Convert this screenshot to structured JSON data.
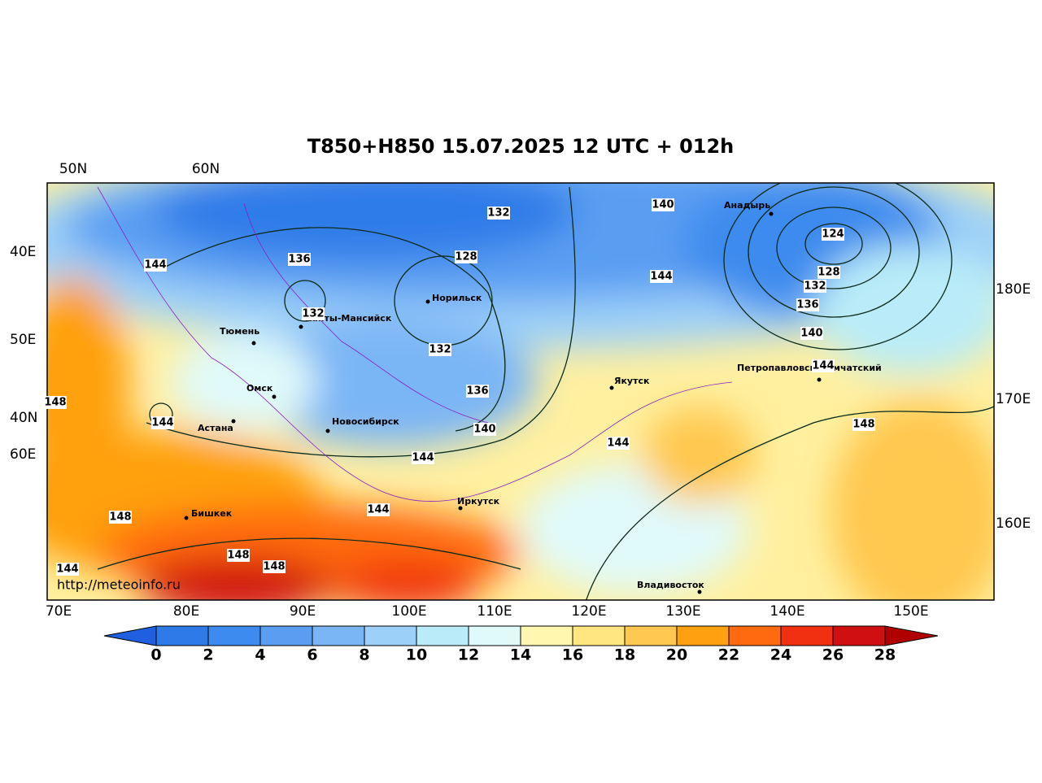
{
  "title": "T850+H850 15.07.2025 12 UTC + 012h",
  "watermark": "http://meteoinfo.ru",
  "top_labels": [
    "50N",
    "60N"
  ],
  "left_labels": [
    "40E",
    "50E",
    "40N",
    "60E"
  ],
  "right_labels": [
    "180E",
    "170E",
    "160E"
  ],
  "bottom_labels": [
    "70E",
    "80E",
    "90E",
    "100E",
    "110E",
    "120E",
    "130E",
    "140E",
    "150E"
  ],
  "cities": [
    "Анадырь",
    "Норильск",
    "Ханты-Мансийск",
    "Тюмень",
    "Омск",
    "Астана",
    "Новосибирск",
    "Якутск",
    "Петропавловск-Камчатский",
    "Иркутск",
    "Бишкек",
    "Владивосток"
  ],
  "contour_labels": [
    148,
    144,
    136,
    132,
    132,
    128,
    140,
    124,
    128,
    132,
    136,
    140,
    144,
    148,
    144,
    144,
    144,
    140,
    136,
    132,
    144,
    148,
    148,
    148,
    144,
    144
  ],
  "colorbar": {
    "ticks": [
      0,
      2,
      4,
      6,
      8,
      10,
      12,
      14,
      16,
      18,
      20,
      22,
      24,
      26,
      28
    ],
    "colors": [
      "#2e7be8",
      "#3d8bee",
      "#5a9ef2",
      "#7ab5f5",
      "#9dd0f8",
      "#b9ecf8",
      "#e0fafa",
      "#fff6b0",
      "#ffe680",
      "#ffc850",
      "#ffa010",
      "#ff6a10",
      "#f03010",
      "#d01010"
    ],
    "under_color": "#2060e0",
    "over_color": "#b00000"
  }
}
